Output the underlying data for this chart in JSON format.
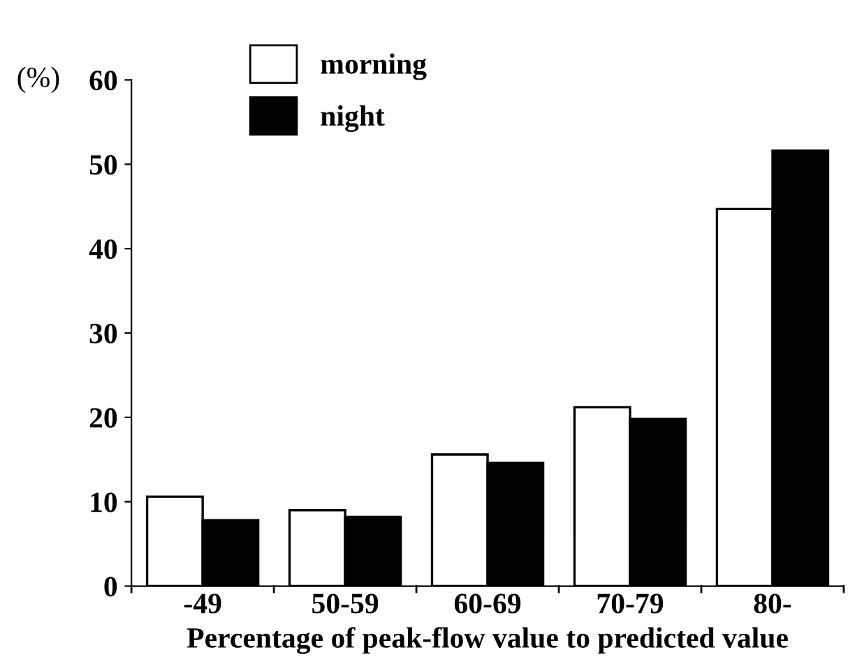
{
  "chart_data": {
    "type": "bar",
    "xlabel": "Percentage of peak-flow value to predicted value",
    "ylabel": "(%)",
    "categories": [
      "-49",
      "50-59",
      "60-69",
      "70-79",
      "80-"
    ],
    "series": [
      {
        "name": "morning",
        "color": "#ffffff",
        "values": [
          10.6,
          9.0,
          15.6,
          21.2,
          44.7
        ]
      },
      {
        "name": "night",
        "color": "#000000",
        "values": [
          7.8,
          8.2,
          14.6,
          19.8,
          51.6
        ]
      }
    ],
    "ylim": [
      0,
      60
    ],
    "yticks": [
      0,
      10,
      20,
      30,
      40,
      50,
      60
    ],
    "grid": false,
    "legend": "top left"
  }
}
